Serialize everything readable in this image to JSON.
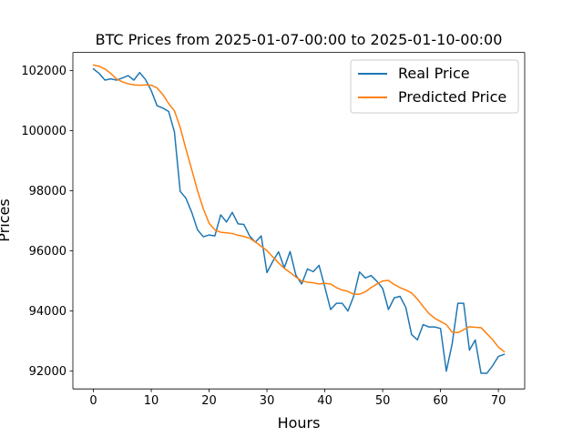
{
  "chart_data": {
    "type": "line",
    "title": "BTC Prices from 2025-01-07-00:00 to 2025-01-10-00:00",
    "xlabel": "Hours",
    "ylabel": "Prices",
    "xlim": [
      -3.55,
      74.55
    ],
    "ylim": [
      91410,
      102600
    ],
    "xticks": [
      0,
      10,
      20,
      30,
      40,
      50,
      60,
      70
    ],
    "xtick_labels": [
      "0",
      "10",
      "20",
      "30",
      "40",
      "50",
      "60",
      "70"
    ],
    "yticks": [
      92000,
      94000,
      96000,
      98000,
      100000,
      102000
    ],
    "ytick_labels": [
      "92000",
      "94000",
      "96000",
      "98000",
      "100000",
      "102000"
    ],
    "grid": false,
    "legend_position": "top-right",
    "x": [
      0,
      1,
      2,
      3,
      4,
      5,
      6,
      7,
      8,
      9,
      10,
      11,
      12,
      13,
      14,
      15,
      16,
      17,
      18,
      19,
      20,
      21,
      22,
      23,
      24,
      25,
      26,
      27,
      28,
      29,
      30,
      31,
      32,
      33,
      34,
      35,
      36,
      37,
      38,
      39,
      40,
      41,
      42,
      43,
      44,
      45,
      46,
      47,
      48,
      49,
      50,
      51,
      52,
      53,
      54,
      55,
      56,
      57,
      58,
      59,
      60,
      61,
      62,
      63,
      64,
      65,
      66,
      67,
      68,
      69,
      70,
      71
    ],
    "series": [
      {
        "name": "Real Price",
        "color": "#1f77b4",
        "values": [
          102050,
          101900,
          101680,
          101720,
          101680,
          101750,
          101830,
          101680,
          101930,
          101700,
          101330,
          100830,
          100750,
          100640,
          99960,
          97980,
          97750,
          97280,
          96700,
          96470,
          96530,
          96500,
          97200,
          96960,
          97280,
          96900,
          96880,
          96500,
          96290,
          96500,
          95280,
          95650,
          95970,
          95440,
          95980,
          95190,
          94900,
          95400,
          95310,
          95520,
          94800,
          94050,
          94260,
          94260,
          94000,
          94500,
          95300,
          95100,
          95180,
          94990,
          94750,
          94050,
          94440,
          94490,
          94120,
          93220,
          93040,
          93550,
          93470,
          93470,
          93420,
          92000,
          92900,
          94260,
          94260,
          92700,
          93040,
          91930,
          91930,
          92180,
          92490,
          92560
        ]
      },
      {
        "name": "Predicted Price",
        "color": "#ff7f0e",
        "values": [
          102180,
          102140,
          102050,
          101900,
          101720,
          101620,
          101560,
          101520,
          101510,
          101520,
          101510,
          101420,
          101200,
          100900,
          100660,
          100110,
          99380,
          98700,
          98000,
          97400,
          96920,
          96700,
          96620,
          96600,
          96580,
          96520,
          96480,
          96420,
          96300,
          96150,
          96010,
          95800,
          95600,
          95420,
          95280,
          95130,
          95000,
          94960,
          94940,
          94900,
          94920,
          94900,
          94780,
          94700,
          94650,
          94560,
          94560,
          94640,
          94780,
          94900,
          95000,
          95020,
          94880,
          94780,
          94700,
          94600,
          94400,
          94150,
          93920,
          93760,
          93650,
          93550,
          93300,
          93280,
          93380,
          93480,
          93460,
          93450,
          93250,
          93050,
          92800,
          92650
        ]
      }
    ]
  }
}
